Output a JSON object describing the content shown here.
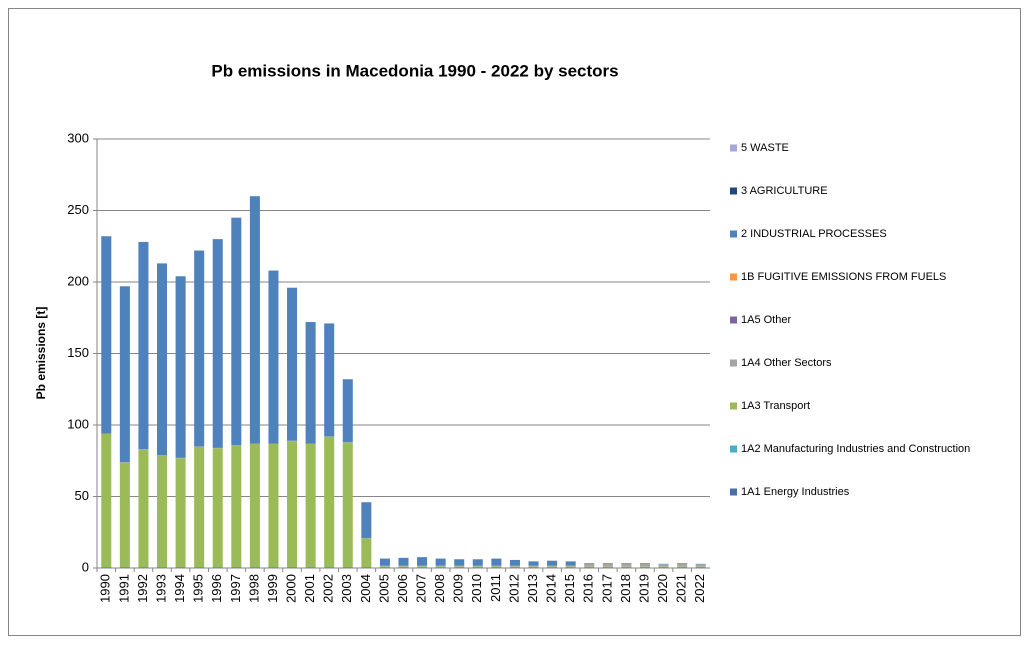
{
  "chart_data": {
    "type": "stacked_bar",
    "title": "Pb emissions in Macedonia 1990 - 2022 by sectors",
    "y_label": "Pb emissions [t]",
    "categories": [
      "1990",
      "1991",
      "1992",
      "1993",
      "1994",
      "1995",
      "1996",
      "1997",
      "1998",
      "1999",
      "2000",
      "2001",
      "2002",
      "2003",
      "2004",
      "2005",
      "2006",
      "2007",
      "2008",
      "2009",
      "2010",
      "2011",
      "2012",
      "2013",
      "2014",
      "2015",
      "2016",
      "2017",
      "2018",
      "2019",
      "2020",
      "2021",
      "2022"
    ],
    "ylim": [
      0,
      300
    ],
    "yticks": [
      0,
      50,
      100,
      150,
      200,
      250,
      300
    ],
    "grid": true,
    "legend": "right",
    "series": [
      {
        "name": "1A1 Energy Industries",
        "color": "#4a6fa5",
        "values": [
          0.2,
          0.2,
          0.2,
          0.2,
          0.2,
          0.2,
          0.2,
          0.2,
          0.2,
          0.2,
          0.2,
          0.2,
          0.2,
          0.2,
          0.2,
          0.2,
          0.2,
          0.2,
          0.2,
          0.2,
          0.2,
          0.2,
          0.2,
          0.2,
          0.2,
          0.2,
          0.2,
          0.2,
          0.2,
          0.2,
          0.2,
          0.2,
          0.2
        ]
      },
      {
        "name": "1A2 Manufacturing Industries and Construction",
        "color": "#4bacc6",
        "values": [
          0.5,
          0.5,
          0.5,
          0.5,
          0.5,
          0.5,
          0.5,
          0.5,
          0.5,
          0.5,
          0.5,
          0.5,
          0.5,
          0.5,
          0.5,
          0.6,
          0.6,
          0.6,
          0.6,
          0.6,
          0.6,
          0.6,
          0.6,
          0.6,
          0.6,
          0.6,
          0.6,
          0.6,
          0.6,
          0.6,
          0.6,
          0.6,
          0.6
        ]
      },
      {
        "name": "1A3 Transport",
        "color": "#9bbb59",
        "values": [
          93,
          73,
          82,
          78,
          76,
          84,
          83,
          85,
          86,
          86,
          88,
          86,
          91,
          87,
          20,
          0.3,
          0.3,
          0.3,
          0.3,
          0.3,
          0.3,
          0.3,
          0.3,
          0.3,
          0.3,
          0.3,
          0.3,
          0.3,
          0.3,
          0.3,
          0.3,
          0.3,
          0.3
        ]
      },
      {
        "name": "1A4 Other Sectors",
        "color": "#a5a5a5",
        "values": [
          0.3,
          0.3,
          0.3,
          0.3,
          0.3,
          0.3,
          0.3,
          0.3,
          0.3,
          0.3,
          0.3,
          0.3,
          0.3,
          0.3,
          0.3,
          0.5,
          0.5,
          0.5,
          0.5,
          0.5,
          0.5,
          0.5,
          0.5,
          0.5,
          0.5,
          0.5,
          1.8,
          1.8,
          1.8,
          1.8,
          1.5,
          1.8,
          1.5
        ]
      },
      {
        "name": "1A5 Other",
        "color": "#8064a2",
        "values": [
          0,
          0,
          0,
          0,
          0,
          0,
          0,
          0,
          0,
          0,
          0,
          0,
          0,
          0,
          0,
          0,
          0,
          0,
          0,
          0,
          0,
          0,
          0,
          0,
          0,
          0,
          0,
          0,
          0,
          0,
          0,
          0,
          0
        ]
      },
      {
        "name": "1B FUGITIVE EMISSIONS FROM FUELS",
        "color": "#f79646",
        "values": [
          0,
          0,
          0,
          0,
          0,
          0,
          0,
          0,
          0,
          0,
          0,
          0,
          0,
          0,
          0,
          0,
          0,
          0,
          0,
          0,
          0,
          0,
          0,
          0,
          0,
          0,
          0,
          0,
          0,
          0,
          0,
          0,
          0
        ]
      },
      {
        "name": "2 INDUSTRIAL PROCESSES",
        "color": "#4f81bd",
        "values": [
          138,
          123,
          145,
          134,
          127,
          137,
          146,
          159,
          173,
          121,
          107,
          85,
          79,
          44,
          25,
          5,
          5.5,
          6,
          5,
          4.5,
          4.5,
          5,
          4,
          3,
          3.5,
          3,
          0.5,
          0.5,
          0.5,
          0.5,
          0.3,
          0.5,
          0.3
        ]
      },
      {
        "name": "3 AGRICULTURE",
        "color": "#1f497d",
        "values": [
          0,
          0,
          0,
          0,
          0,
          0,
          0,
          0,
          0,
          0,
          0,
          0,
          0,
          0,
          0,
          0,
          0,
          0,
          0,
          0,
          0,
          0,
          0,
          0,
          0,
          0,
          0,
          0,
          0,
          0,
          0,
          0,
          0
        ]
      },
      {
        "name": "5 WASTE",
        "color": "#a6a6d8",
        "values": [
          0.05,
          0.05,
          0.05,
          0.05,
          0.05,
          0.05,
          0.05,
          0.05,
          0.05,
          0.05,
          0.05,
          0.05,
          0.05,
          0.05,
          0.05,
          0.05,
          0.05,
          0.05,
          0.05,
          0.05,
          0.05,
          0.05,
          0.05,
          0.05,
          0.05,
          0.05,
          0.05,
          0.05,
          0.05,
          0.05,
          0.05,
          0.05,
          0.05
        ]
      }
    ]
  }
}
